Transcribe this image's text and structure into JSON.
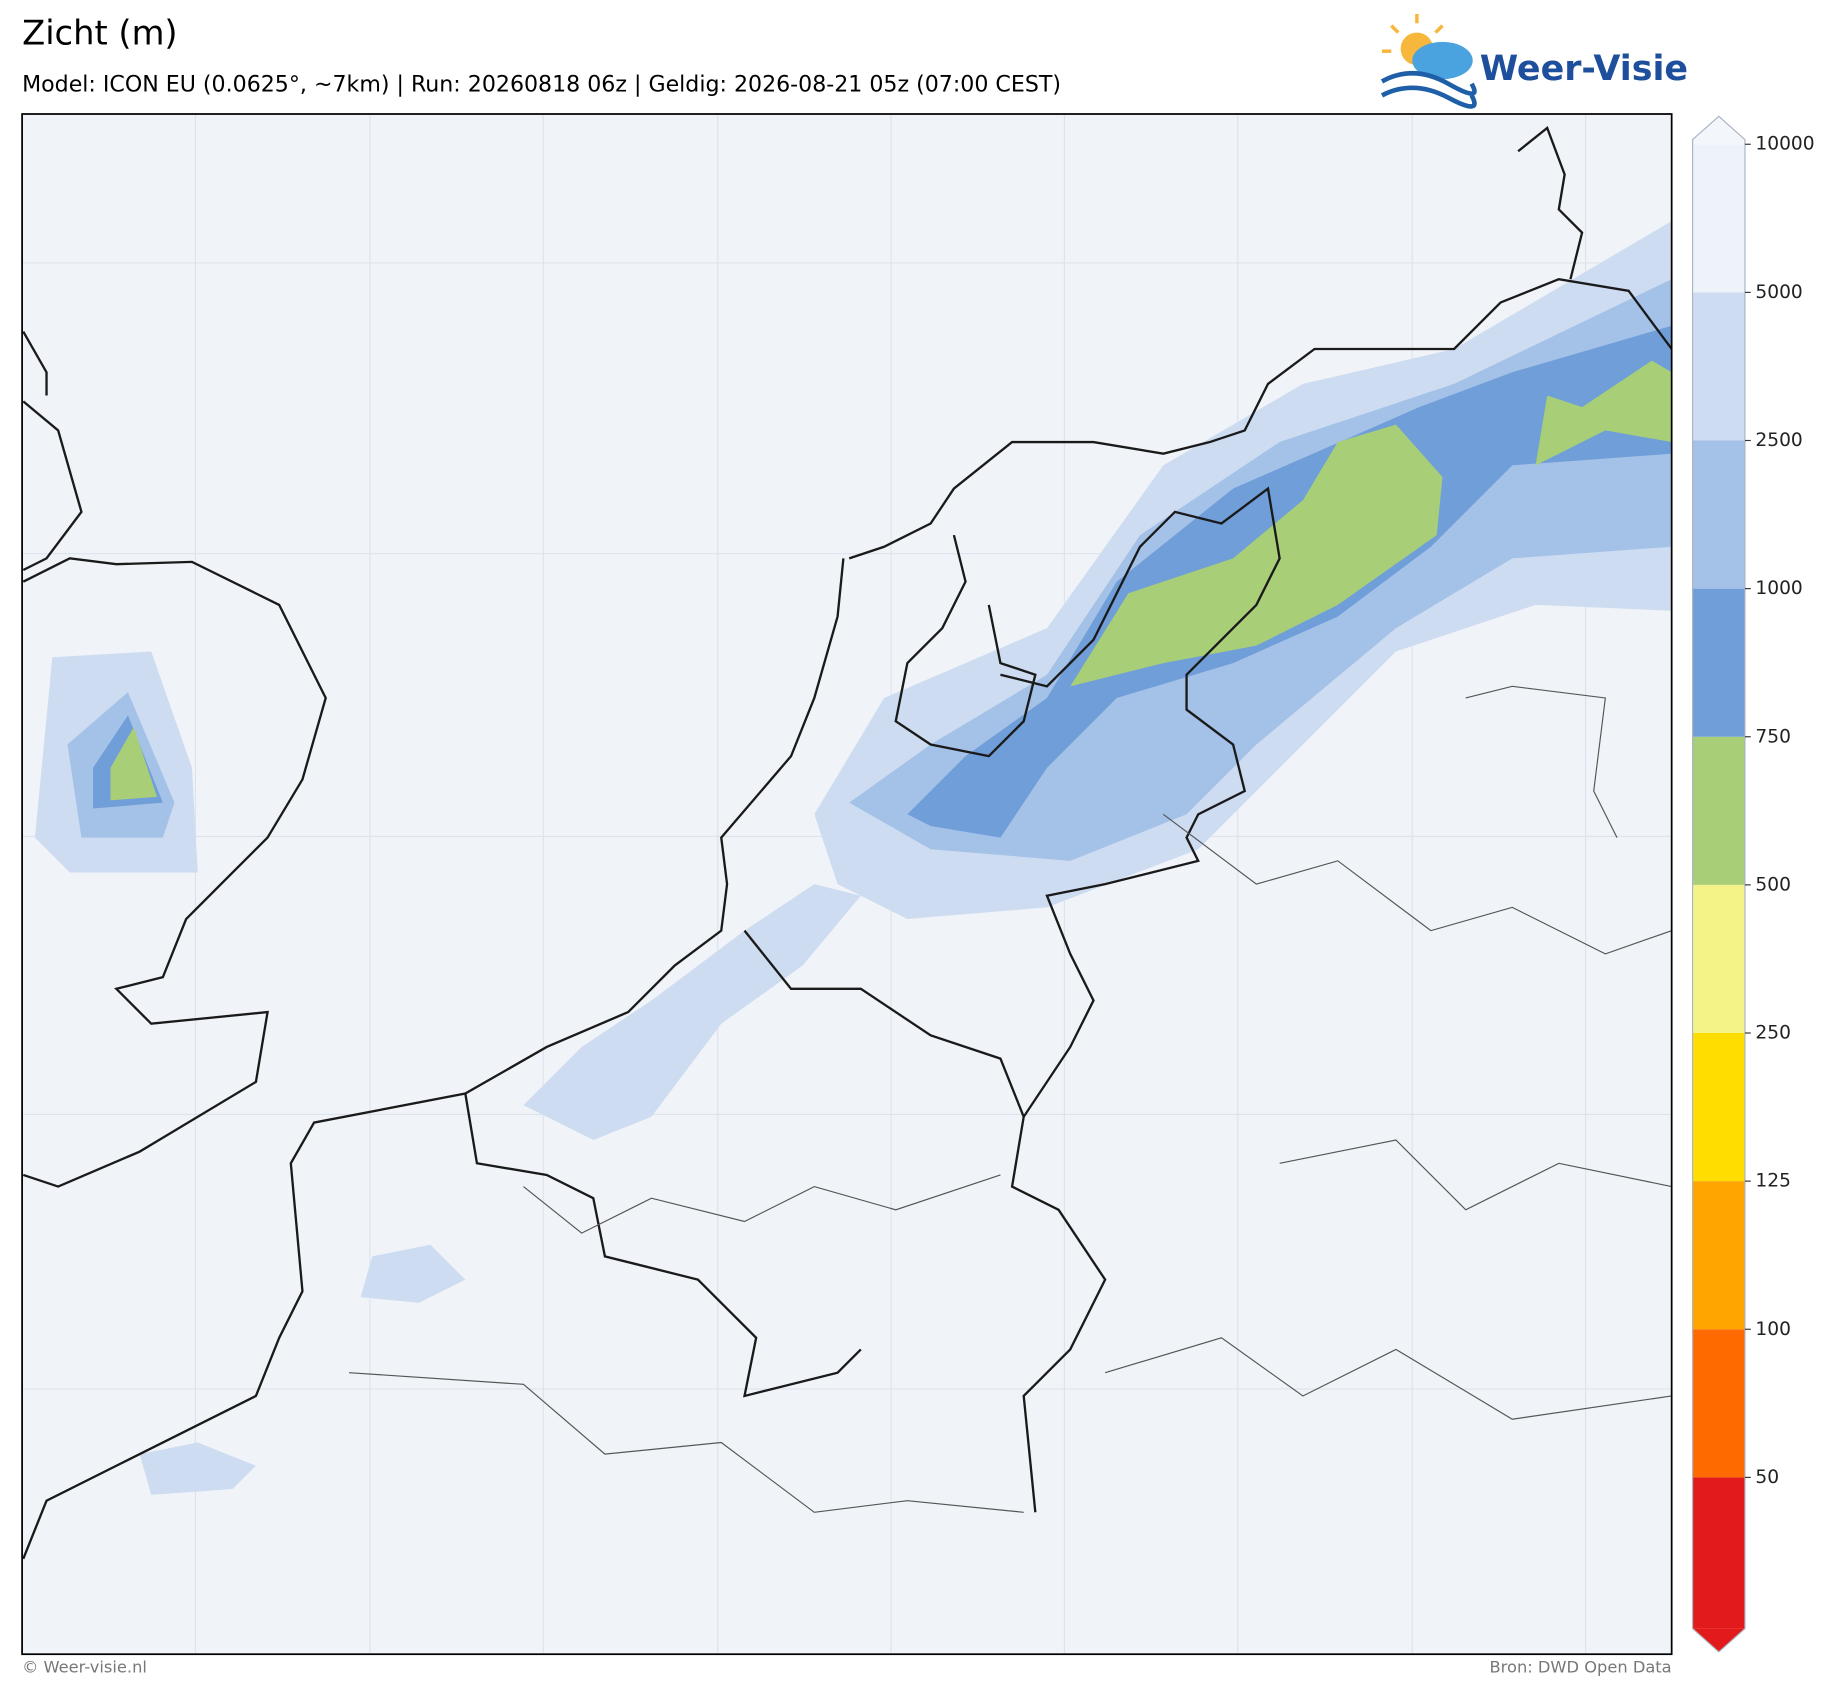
{
  "header": {
    "title": "Zicht (m)",
    "subtitle": "Model: ICON EU (0.0625°, ~7km)  |  Run: 20260818 06z  |  Geldig: 2026-08-21 05z (07:00 CEST)",
    "logo": "Weer-Visie"
  },
  "colorbar": {
    "ticks": [
      50,
      100,
      125,
      250,
      500,
      750,
      1000,
      2500,
      5000,
      10000
    ],
    "colors": [
      "#e31a1c",
      "#ff6a00",
      "#ffa500",
      "#ffdd00",
      "#f4f387",
      "#a8cf78",
      "#6f9ed8",
      "#a4c1e8",
      "#cddcf0",
      "#eef3fa",
      "#f3f6fb"
    ]
  },
  "footer": {
    "left": "© Weer-visie.nl",
    "right": "Bron: DWD Open Data"
  }
}
